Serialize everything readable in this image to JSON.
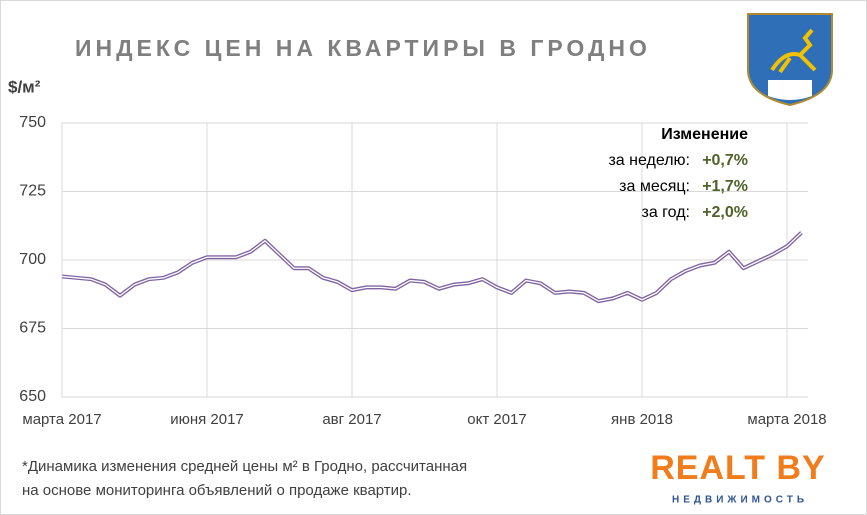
{
  "chart_data": {
    "type": "line",
    "title": "ИНДЕКС ЦЕН НА КВАРТИРЫ В ГРОДНО",
    "y_label": "$/м²",
    "categories": [
      "марта 2017",
      null,
      null,
      null,
      null,
      null,
      null,
      null,
      null,
      null,
      "июня 2017",
      null,
      null,
      null,
      null,
      null,
      null,
      null,
      null,
      null,
      "авг 2017",
      null,
      null,
      null,
      null,
      null,
      null,
      null,
      null,
      null,
      "окт 2017",
      null,
      null,
      null,
      null,
      null,
      null,
      null,
      null,
      null,
      "янв 2018",
      null,
      null,
      null,
      null,
      null,
      null,
      null,
      null,
      null,
      "марта 2018",
      null
    ],
    "series": [
      {
        "name": "Индекс",
        "color": "#8064a2",
        "values": [
          694,
          693.5,
          693,
          691,
          687,
          691,
          693,
          693.5,
          695.5,
          699,
          701,
          701,
          701,
          703,
          707,
          702,
          697,
          697,
          693.5,
          692,
          689,
          690,
          690,
          689.5,
          692.5,
          692,
          689.5,
          691,
          691.5,
          693,
          690,
          688,
          692.5,
          691.5,
          688,
          688.5,
          688,
          685,
          686,
          688,
          685.5,
          688,
          693,
          696,
          698,
          699,
          703,
          697,
          699.5,
          702,
          705,
          710
        ]
      }
    ],
    "ylim": [
      650,
      750
    ],
    "yticks": [
      650,
      675,
      700,
      725,
      750
    ],
    "grid": true,
    "annotations": {
      "heading": "Изменение",
      "rows": [
        {
          "label": "за неделю:",
          "value": "+0,7%"
        },
        {
          "label": "за месяц:",
          "value": "+1,7%"
        },
        {
          "label": "за год:",
          "value": "+2,0%"
        }
      ]
    },
    "footnote": [
      "*Динамика  изменения  средней  цены  м² в Гродно, рассчитанная",
      "на основе  мониторинга  объявлений  о продаже  квартир."
    ],
    "logo": {
      "name": "REALT BY",
      "tagline": "НЕДВИЖИМОСТЬ"
    }
  }
}
